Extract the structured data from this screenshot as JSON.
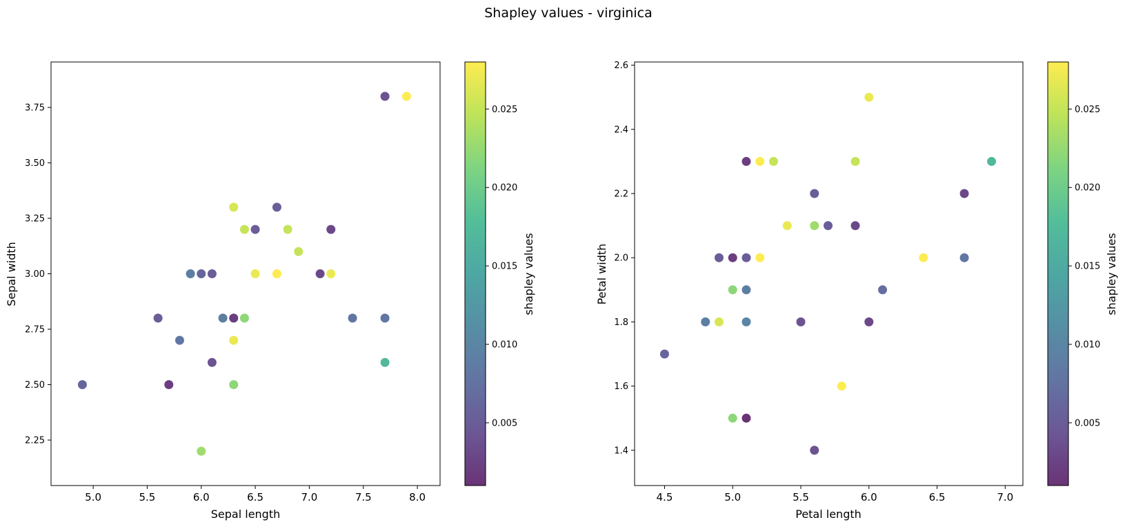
{
  "figure": {
    "title": "Shapley values - virginica"
  },
  "colormap": {
    "name": "viridis",
    "alpha": 0.8,
    "vmin": 0.001,
    "vmax": 0.028
  },
  "chart_data": [
    {
      "type": "scatter",
      "xlabel": "Sepal length",
      "ylabel": "Sepal width",
      "xlim": [
        4.61,
        8.21
      ],
      "ylim": [
        2.045,
        3.955
      ],
      "xticks": [
        5.0,
        5.5,
        6.0,
        6.5,
        7.0,
        7.5,
        8.0
      ],
      "xtick_labels": [
        "5.0",
        "5.5",
        "6.0",
        "6.5",
        "7.0",
        "7.5",
        "8.0"
      ],
      "yticks": [
        2.25,
        2.5,
        2.75,
        3.0,
        3.25,
        3.5,
        3.75
      ],
      "ytick_labels": [
        "2.25",
        "2.50",
        "2.75",
        "3.00",
        "3.25",
        "3.50",
        "3.75"
      ],
      "colorbar_label": "shapley values",
      "colorbar_ticks": [
        0.005,
        0.01,
        0.015,
        0.02,
        0.025
      ],
      "colorbar_tick_labels": [
        "0.005",
        "0.010",
        "0.015",
        "0.020",
        "0.025"
      ],
      "points": [
        {
          "x": 4.9,
          "y": 2.5,
          "c": 0.006
        },
        {
          "x": 5.6,
          "y": 2.8,
          "c": 0.005
        },
        {
          "x": 5.7,
          "y": 2.5,
          "c": 0.002
        },
        {
          "x": 5.8,
          "y": 2.7,
          "c": 0.008
        },
        {
          "x": 5.9,
          "y": 3.0,
          "c": 0.009
        },
        {
          "x": 6.0,
          "y": 3.0,
          "c": 0.006
        },
        {
          "x": 6.0,
          "y": 2.2,
          "c": 0.023
        },
        {
          "x": 6.1,
          "y": 3.0,
          "c": 0.005
        },
        {
          "x": 6.1,
          "y": 2.6,
          "c": 0.004
        },
        {
          "x": 6.2,
          "y": 2.8,
          "c": 0.009
        },
        {
          "x": 6.3,
          "y": 3.3,
          "c": 0.026
        },
        {
          "x": 6.3,
          "y": 2.8,
          "c": 0.002
        },
        {
          "x": 6.3,
          "y": 2.7,
          "c": 0.027
        },
        {
          "x": 6.3,
          "y": 2.5,
          "c": 0.022
        },
        {
          "x": 6.4,
          "y": 3.2,
          "c": 0.025
        },
        {
          "x": 6.4,
          "y": 2.8,
          "c": 0.022
        },
        {
          "x": 6.5,
          "y": 3.2,
          "c": 0.005
        },
        {
          "x": 6.5,
          "y": 3.0,
          "c": 0.027
        },
        {
          "x": 6.7,
          "y": 3.3,
          "c": 0.005
        },
        {
          "x": 6.7,
          "y": 3.0,
          "c": 0.028
        },
        {
          "x": 6.8,
          "y": 3.2,
          "c": 0.025
        },
        {
          "x": 6.9,
          "y": 3.1,
          "c": 0.025
        },
        {
          "x": 7.1,
          "y": 3.0,
          "c": 0.003
        },
        {
          "x": 7.2,
          "y": 3.2,
          "c": 0.003
        },
        {
          "x": 7.2,
          "y": 3.0,
          "c": 0.027
        },
        {
          "x": 7.4,
          "y": 2.8,
          "c": 0.008
        },
        {
          "x": 7.7,
          "y": 3.8,
          "c": 0.004
        },
        {
          "x": 7.7,
          "y": 2.8,
          "c": 0.008
        },
        {
          "x": 7.7,
          "y": 2.6,
          "c": 0.017
        },
        {
          "x": 7.9,
          "y": 3.8,
          "c": 0.028
        }
      ]
    },
    {
      "type": "scatter",
      "xlabel": "Petal length",
      "ylabel": "Petal width",
      "xlim": [
        4.28,
        7.13
      ],
      "ylim": [
        1.29,
        2.61
      ],
      "xticks": [
        4.5,
        5.0,
        5.5,
        6.0,
        6.5,
        7.0
      ],
      "xtick_labels": [
        "4.5",
        "5.0",
        "5.5",
        "6.0",
        "6.5",
        "7.0"
      ],
      "yticks": [
        1.4,
        1.6,
        1.8,
        2.0,
        2.2,
        2.4,
        2.6
      ],
      "ytick_labels": [
        "1.4",
        "1.6",
        "1.8",
        "2.0",
        "2.2",
        "2.4",
        "2.6"
      ],
      "colorbar_label": "shapley values",
      "colorbar_ticks": [
        0.005,
        0.01,
        0.015,
        0.02,
        0.025
      ],
      "colorbar_tick_labels": [
        "0.005",
        "0.010",
        "0.015",
        "0.020",
        "0.025"
      ],
      "points": [
        {
          "x": 4.5,
          "y": 1.7,
          "c": 0.006
        },
        {
          "x": 4.8,
          "y": 1.8,
          "c": 0.009
        },
        {
          "x": 4.9,
          "y": 2.0,
          "c": 0.005
        },
        {
          "x": 4.9,
          "y": 1.8,
          "c": 0.026
        },
        {
          "x": 5.0,
          "y": 2.0,
          "c": 0.002
        },
        {
          "x": 5.0,
          "y": 1.9,
          "c": 0.022
        },
        {
          "x": 5.0,
          "y": 1.5,
          "c": 0.022
        },
        {
          "x": 5.1,
          "y": 2.3,
          "c": 0.002
        },
        {
          "x": 5.1,
          "y": 2.0,
          "c": 0.005
        },
        {
          "x": 5.1,
          "y": 1.9,
          "c": 0.009
        },
        {
          "x": 5.1,
          "y": 1.8,
          "c": 0.01
        },
        {
          "x": 5.1,
          "y": 1.5,
          "c": 0.001
        },
        {
          "x": 5.2,
          "y": 2.3,
          "c": 0.028
        },
        {
          "x": 5.2,
          "y": 2.0,
          "c": 0.028
        },
        {
          "x": 5.3,
          "y": 2.3,
          "c": 0.025
        },
        {
          "x": 5.4,
          "y": 2.1,
          "c": 0.027
        },
        {
          "x": 5.5,
          "y": 1.8,
          "c": 0.004
        },
        {
          "x": 5.6,
          "y": 2.2,
          "c": 0.005
        },
        {
          "x": 5.6,
          "y": 2.1,
          "c": 0.023
        },
        {
          "x": 5.6,
          "y": 1.4,
          "c": 0.004
        },
        {
          "x": 5.7,
          "y": 2.1,
          "c": 0.005
        },
        {
          "x": 5.8,
          "y": 1.6,
          "c": 0.028
        },
        {
          "x": 5.9,
          "y": 2.3,
          "c": 0.025
        },
        {
          "x": 5.9,
          "y": 2.1,
          "c": 0.003
        },
        {
          "x": 6.0,
          "y": 2.5,
          "c": 0.027
        },
        {
          "x": 6.0,
          "y": 1.8,
          "c": 0.003
        },
        {
          "x": 6.1,
          "y": 1.9,
          "c": 0.007
        },
        {
          "x": 6.4,
          "y": 2.0,
          "c": 0.028
        },
        {
          "x": 6.7,
          "y": 2.2,
          "c": 0.003
        },
        {
          "x": 6.7,
          "y": 2.0,
          "c": 0.008
        },
        {
          "x": 6.9,
          "y": 2.3,
          "c": 0.017
        }
      ]
    }
  ]
}
